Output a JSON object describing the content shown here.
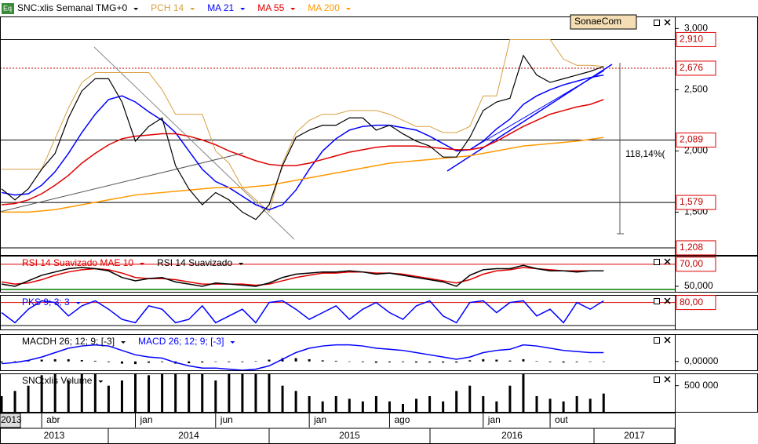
{
  "chart_data": [
    {
      "type": "line",
      "title": "SNC:xlis Semanal TMG+0",
      "icon": "Eq",
      "categories": [
        "2013",
        null,
        null,
        "abr",
        null,
        null,
        null,
        null,
        null,
        null,
        "jan",
        null,
        null,
        null,
        null,
        null,
        "jun",
        null,
        null,
        null,
        null,
        null,
        null,
        "jan",
        null,
        null,
        null,
        null,
        null,
        "ago",
        null,
        null,
        null,
        null,
        null,
        null,
        "jan",
        null,
        null,
        null,
        null,
        "out",
        null,
        null,
        null,
        null
      ],
      "year_labels": [
        "2013",
        "2014",
        "2015",
        "2016",
        "2017"
      ],
      "values": [
        1690,
        1600,
        1690,
        1850,
        1980,
        2270,
        2490,
        2590,
        2590,
        2400,
        2080,
        2200,
        2270,
        1880,
        1690,
        1560,
        1660,
        1600,
        1500,
        1440,
        1560,
        1880,
        2110,
        2170,
        2210,
        2210,
        2270,
        2270,
        2170,
        2210,
        2140,
        2080,
        2040,
        1950,
        1950,
        2110,
        2330,
        2400,
        2430,
        2780,
        2620,
        2560,
        2590,
        2620,
        2650,
        2690
      ],
      "color": "#000000",
      "series": [
        {
          "name": "PCH 14",
          "color": "#d8a040",
          "values": [
            1850,
            1850,
            1850,
            1850,
            2100,
            2350,
            2560,
            2640,
            2640,
            2640,
            2640,
            2640,
            2500,
            2300,
            2300,
            2300,
            2000,
            1900,
            1700,
            1600,
            1500,
            1900,
            2150,
            2250,
            2300,
            2300,
            2330,
            2330,
            2330,
            2300,
            2250,
            2200,
            2200,
            2150,
            2150,
            2200,
            2450,
            2450,
            2910,
            2910,
            2910,
            2910,
            2750,
            2700,
            2700,
            2690
          ]
        },
        {
          "name": "MA 21",
          "color": "#0000ff",
          "values": [
            1660,
            1640,
            1650,
            1720,
            1830,
            1980,
            2150,
            2300,
            2420,
            2450,
            2400,
            2320,
            2250,
            2150,
            2000,
            1850,
            1750,
            1700,
            1630,
            1560,
            1520,
            1560,
            1680,
            1850,
            2000,
            2100,
            2170,
            2200,
            2210,
            2210,
            2190,
            2170,
            2120,
            2060,
            2000,
            2010,
            2080,
            2180,
            2260,
            2380,
            2450,
            2500,
            2540,
            2570,
            2600,
            2620
          ]
        },
        {
          "name": "MA 55",
          "color": "#e00000",
          "values": [
            1560,
            1570,
            1600,
            1650,
            1720,
            1800,
            1900,
            1980,
            2050,
            2100,
            2120,
            2130,
            2140,
            2140,
            2120,
            2090,
            2050,
            2000,
            1960,
            1920,
            1890,
            1880,
            1880,
            1900,
            1930,
            1960,
            1990,
            2010,
            2030,
            2040,
            2040,
            2040,
            2030,
            2020,
            2010,
            2010,
            2030,
            2080,
            2140,
            2200,
            2250,
            2300,
            2330,
            2360,
            2380,
            2420
          ]
        },
        {
          "name": "MA 200",
          "color": "#ff9900",
          "values": [
            1500,
            1500,
            1500,
            1510,
            1520,
            1540,
            1560,
            1580,
            1600,
            1620,
            1640,
            1650,
            1660,
            1670,
            1680,
            1690,
            1700,
            1700,
            1700,
            1710,
            1720,
            1740,
            1760,
            1780,
            1800,
            1820,
            1840,
            1860,
            1880,
            1900,
            1910,
            1920,
            1930,
            1940,
            1950,
            1960,
            1980,
            2000,
            2020,
            2040,
            2050,
            2060,
            2070,
            2080,
            2095,
            2110
          ]
        }
      ],
      "ylim": [
        1150,
        3150
      ],
      "yticks": [
        {
          "value": 1500,
          "label": "1,500"
        },
        {
          "value": 2000,
          "label": "2,000"
        },
        {
          "value": 2500,
          "label": "2,500"
        },
        {
          "value": 3000,
          "label": "3,000"
        }
      ],
      "levels": [
        {
          "value": 2910,
          "label": "2,910",
          "line_color": "#000000"
        },
        {
          "value": 2676,
          "label": "2,676",
          "line_color": "#c00000",
          "dashed": true
        },
        {
          "value": 2089,
          "label": "2,089",
          "line_color": "#000000"
        },
        {
          "value": 1579,
          "label": "1,579",
          "line_color": "#000000"
        },
        {
          "value": 1208,
          "label": "1,208",
          "line_color": "#000000"
        }
      ],
      "annotations": [
        "118,14%(",
        "SonaeCom"
      ]
    },
    {
      "type": "line",
      "series": [
        {
          "name": "RSI 14 Suavizado MAE 10",
          "color": "#e00000",
          "values": [
            54,
            52,
            53,
            56,
            60,
            63,
            65,
            66,
            65,
            62,
            58,
            57,
            57,
            56,
            54,
            52,
            52,
            52,
            52,
            51,
            52,
            55,
            58,
            60,
            62,
            62,
            63,
            63,
            62,
            62,
            61,
            59,
            57,
            55,
            53,
            56,
            61,
            64,
            65,
            67,
            66,
            65,
            64,
            64,
            64,
            64
          ]
        },
        {
          "name": "RSI 14 Suavizado",
          "color": "#000000",
          "values": [
            52,
            50,
            55,
            60,
            63,
            66,
            67,
            66,
            64,
            58,
            55,
            57,
            58,
            54,
            52,
            50,
            53,
            52,
            51,
            50,
            53,
            58,
            61,
            62,
            63,
            63,
            64,
            63,
            61,
            62,
            60,
            58,
            56,
            54,
            50,
            60,
            65,
            66,
            66,
            69,
            66,
            64,
            64,
            63,
            64,
            64
          ]
        }
      ],
      "ylim": [
        45,
        77
      ],
      "yticks": [
        {
          "value": 50,
          "label": "50,000"
        }
      ],
      "levels": [
        {
          "value": 70,
          "label": "70,00",
          "line_color": "#e00000"
        }
      ]
    },
    {
      "type": "line",
      "series": [
        {
          "name": "PKS 9; 3; 3",
          "color": "#0000ff",
          "values": [
            50,
            20,
            60,
            85,
            80,
            40,
            70,
            85,
            60,
            30,
            20,
            70,
            60,
            20,
            30,
            70,
            20,
            40,
            60,
            20,
            80,
            85,
            60,
            30,
            50,
            70,
            30,
            60,
            80,
            50,
            30,
            70,
            85,
            40,
            20,
            80,
            85,
            50,
            80,
            85,
            40,
            60,
            20,
            80,
            60,
            85
          ]
        }
      ],
      "ylim": [
        0,
        100
      ],
      "yticks": [],
      "levels": [
        {
          "value": 80,
          "label": "80,00",
          "line_color": "#e00000"
        }
      ]
    },
    {
      "type": "line",
      "series": [
        {
          "name": "MACDH 26; 12; 9; [-3]",
          "color": "#000000",
          "type": "bar",
          "values": [
            -5,
            2,
            5,
            8,
            10,
            10,
            6,
            3,
            -3,
            -10,
            -12,
            -6,
            -3,
            -10,
            -8,
            -5,
            -2,
            -3,
            -3,
            2,
            8,
            15,
            15,
            10,
            5,
            3,
            0,
            -3,
            -6,
            -4,
            -3,
            -5,
            -5,
            -5,
            -5,
            5,
            10,
            8,
            4,
            10,
            2,
            -3,
            -5,
            -3,
            -2,
            -2
          ]
        },
        {
          "name": "MACD 26; 12; 9; [-3]",
          "color": "#0000ff",
          "values": [
            -10,
            -5,
            5,
            20,
            40,
            60,
            70,
            75,
            70,
            50,
            30,
            20,
            15,
            -5,
            -20,
            -30,
            -30,
            -35,
            -40,
            -35,
            -20,
            10,
            40,
            60,
            70,
            75,
            75,
            70,
            60,
            55,
            50,
            40,
            30,
            20,
            10,
            20,
            40,
            50,
            55,
            75,
            70,
            60,
            50,
            45,
            40,
            40
          ]
        }
      ],
      "ylim": [
        -40,
        120
      ],
      "yticks": [
        {
          "value": 0,
          "label": "0,00000"
        }
      ]
    },
    {
      "type": "bar",
      "series": [
        {
          "name": "SNC:xlis Volume",
          "color": "#000000",
          "values": [
            300000,
            400000,
            500000,
            700000,
            720000,
            600000,
            720000,
            720000,
            500000,
            600000,
            720000,
            700000,
            720000,
            720000,
            720000,
            720000,
            600000,
            720000,
            720000,
            720000,
            720000,
            500000,
            400000,
            300000,
            200000,
            300000,
            250000,
            200000,
            300000,
            200000,
            150000,
            250000,
            300000,
            200000,
            400000,
            500000,
            300000,
            200000,
            500000,
            720000,
            300000,
            250000,
            200000,
            300000,
            250000,
            350000
          ]
        }
      ],
      "ylim": [
        0,
        720000
      ],
      "yticks": [
        {
          "value": 500000,
          "label": "500 000"
        }
      ]
    }
  ]
}
